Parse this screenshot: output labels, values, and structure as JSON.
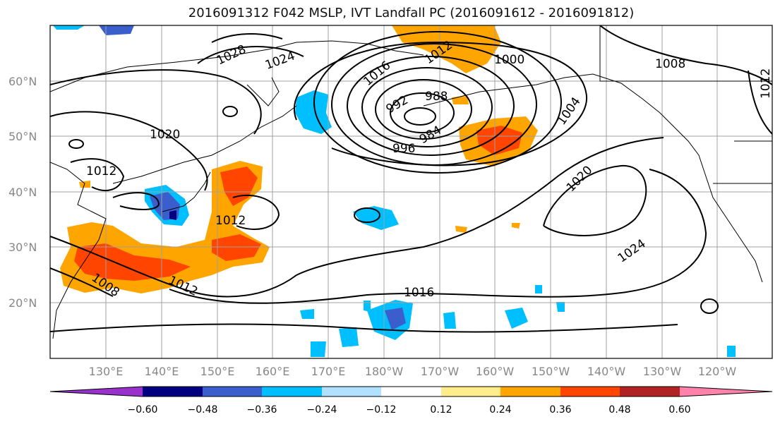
{
  "title": "2016091312 F042 MSLP, IVT Landfall PC (2016091612 - 2016091812)",
  "lat_labels": [
    "60°N",
    "50°N",
    "40°N",
    "30°N",
    "20°N"
  ],
  "lon_labels": [
    "130°E",
    "140°E",
    "150°E",
    "160°E",
    "170°E",
    "180°W",
    "170°W",
    "160°W",
    "150°W",
    "140°W",
    "130°W",
    "120°W"
  ],
  "contour_labels": [
    "1028",
    "1024",
    "1016",
    "1012",
    "1000",
    "1008",
    "1012",
    "992",
    "988",
    "984",
    "996",
    "1004",
    "1020",
    "1020",
    "1012",
    "1012",
    "1024",
    "1016",
    "1008",
    "1012"
  ],
  "colorbar": {
    "colors": [
      "#9932cc",
      "#000080",
      "#3a5fcd",
      "#00bfff",
      "#b0e2ff",
      "#ffffff",
      "#ffec8b",
      "#ffa500",
      "#ff4500",
      "#b22222",
      "#ff82ab"
    ],
    "tick_labels": [
      "−0.60",
      "−0.48",
      "−0.36",
      "−0.24",
      "−0.12",
      "0.12",
      "0.24",
      "0.36",
      "0.48",
      "0.60"
    ]
  }
}
